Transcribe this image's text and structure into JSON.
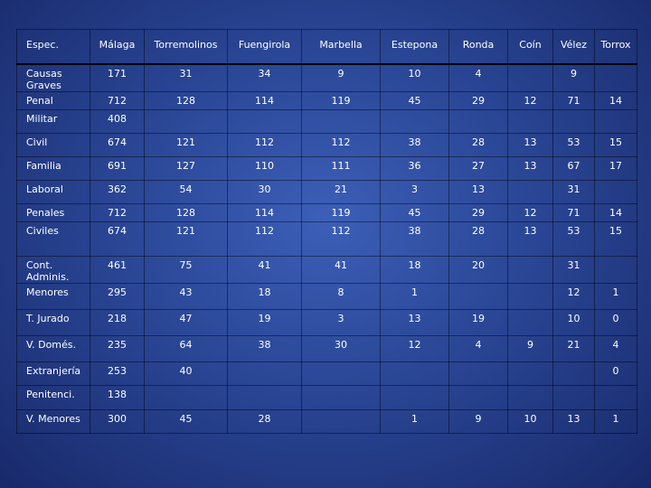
{
  "table": {
    "headers": [
      "Espec.",
      "Málaga",
      "Torremolinos",
      "Fuengirola",
      "Marbella",
      "Estepona",
      "Ronda",
      "Coín",
      "Vélez",
      "Torrox"
    ],
    "rows": [
      [
        "Causas Graves",
        "171",
        "31",
        "34",
        "9",
        "10",
        "4",
        "",
        "9",
        ""
      ],
      [
        "Penal",
        "712",
        "128",
        "114",
        "119",
        "45",
        "29",
        "12",
        "71",
        "14"
      ],
      [
        "Militar",
        "408",
        "",
        "",
        "",
        "",
        "",
        "",
        "",
        ""
      ],
      [
        "Civil",
        "674",
        "121",
        "112",
        "112",
        "38",
        "28",
        "13",
        "53",
        "15"
      ],
      [
        "Familia",
        "691",
        "127",
        "110",
        "111",
        "36",
        "27",
        "13",
        "67",
        "17"
      ],
      [
        "Laboral",
        "362",
        "54",
        "30",
        "21",
        "3",
        "13",
        "",
        "31",
        ""
      ],
      [
        "Penales",
        "712",
        "128",
        "114",
        "119",
        "45",
        "29",
        "12",
        "71",
        "14"
      ],
      [
        "Civiles",
        "674",
        "121",
        "112",
        "112",
        "38",
        "28",
        "13",
        "53",
        "15"
      ],
      [
        "Cont. Adminis.",
        "461",
        "75",
        "41",
        "41",
        "18",
        "20",
        "",
        "31",
        ""
      ],
      [
        "Menores",
        "295",
        "43",
        "18",
        "8",
        "1",
        "",
        "",
        "12",
        "1"
      ],
      [
        "T. Jurado",
        "218",
        "47",
        "19",
        "3",
        "13",
        "19",
        "",
        "10",
        "0"
      ],
      [
        "V. Domés.",
        "235",
        "64",
        "38",
        "30",
        "12",
        "4",
        "9",
        "21",
        "4"
      ],
      [
        "Extranjería",
        "253",
        "40",
        "",
        "",
        "",
        "",
        "",
        "",
        "0"
      ],
      [
        "Penitenci.",
        "138",
        "",
        "",
        "",
        "",
        "",
        "",
        "",
        ""
      ],
      [
        "V. Menores",
        "300",
        "45",
        "28",
        "",
        "1",
        "9",
        "10",
        "13",
        "1"
      ]
    ]
  }
}
